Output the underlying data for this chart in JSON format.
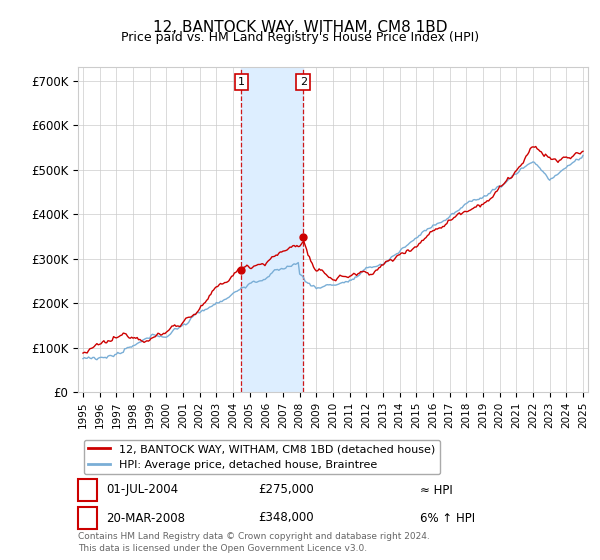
{
  "title": "12, BANTOCK WAY, WITHAM, CM8 1BD",
  "subtitle": "Price paid vs. HM Land Registry's House Price Index (HPI)",
  "ylabel_ticks": [
    "£0",
    "£100K",
    "£200K",
    "£300K",
    "£400K",
    "£500K",
    "£600K",
    "£700K"
  ],
  "ytick_vals": [
    0,
    100000,
    200000,
    300000,
    400000,
    500000,
    600000,
    700000
  ],
  "ylim": [
    0,
    730000
  ],
  "xlim": [
    1994.7,
    2025.3
  ],
  "sale1": {
    "date_num": 2004.5,
    "price": 275000,
    "label": "1",
    "date_str": "01-JUL-2004",
    "note": "≈ HPI"
  },
  "sale2": {
    "date_num": 2008.22,
    "price": 348000,
    "label": "2",
    "date_str": "20-MAR-2008",
    "note": "6% ↑ HPI"
  },
  "legend_line1": "12, BANTOCK WAY, WITHAM, CM8 1BD (detached house)",
  "legend_line2": "HPI: Average price, detached house, Braintree",
  "footer": "Contains HM Land Registry data © Crown copyright and database right 2024.\nThis data is licensed under the Open Government Licence v3.0.",
  "line_color": "#cc0000",
  "hpi_color": "#7aaed6",
  "shade_color": "#ddeeff",
  "vline_color": "#cc0000",
  "background_color": "#ffffff",
  "grid_color": "#cccccc",
  "label_box_color": "#cc0000"
}
